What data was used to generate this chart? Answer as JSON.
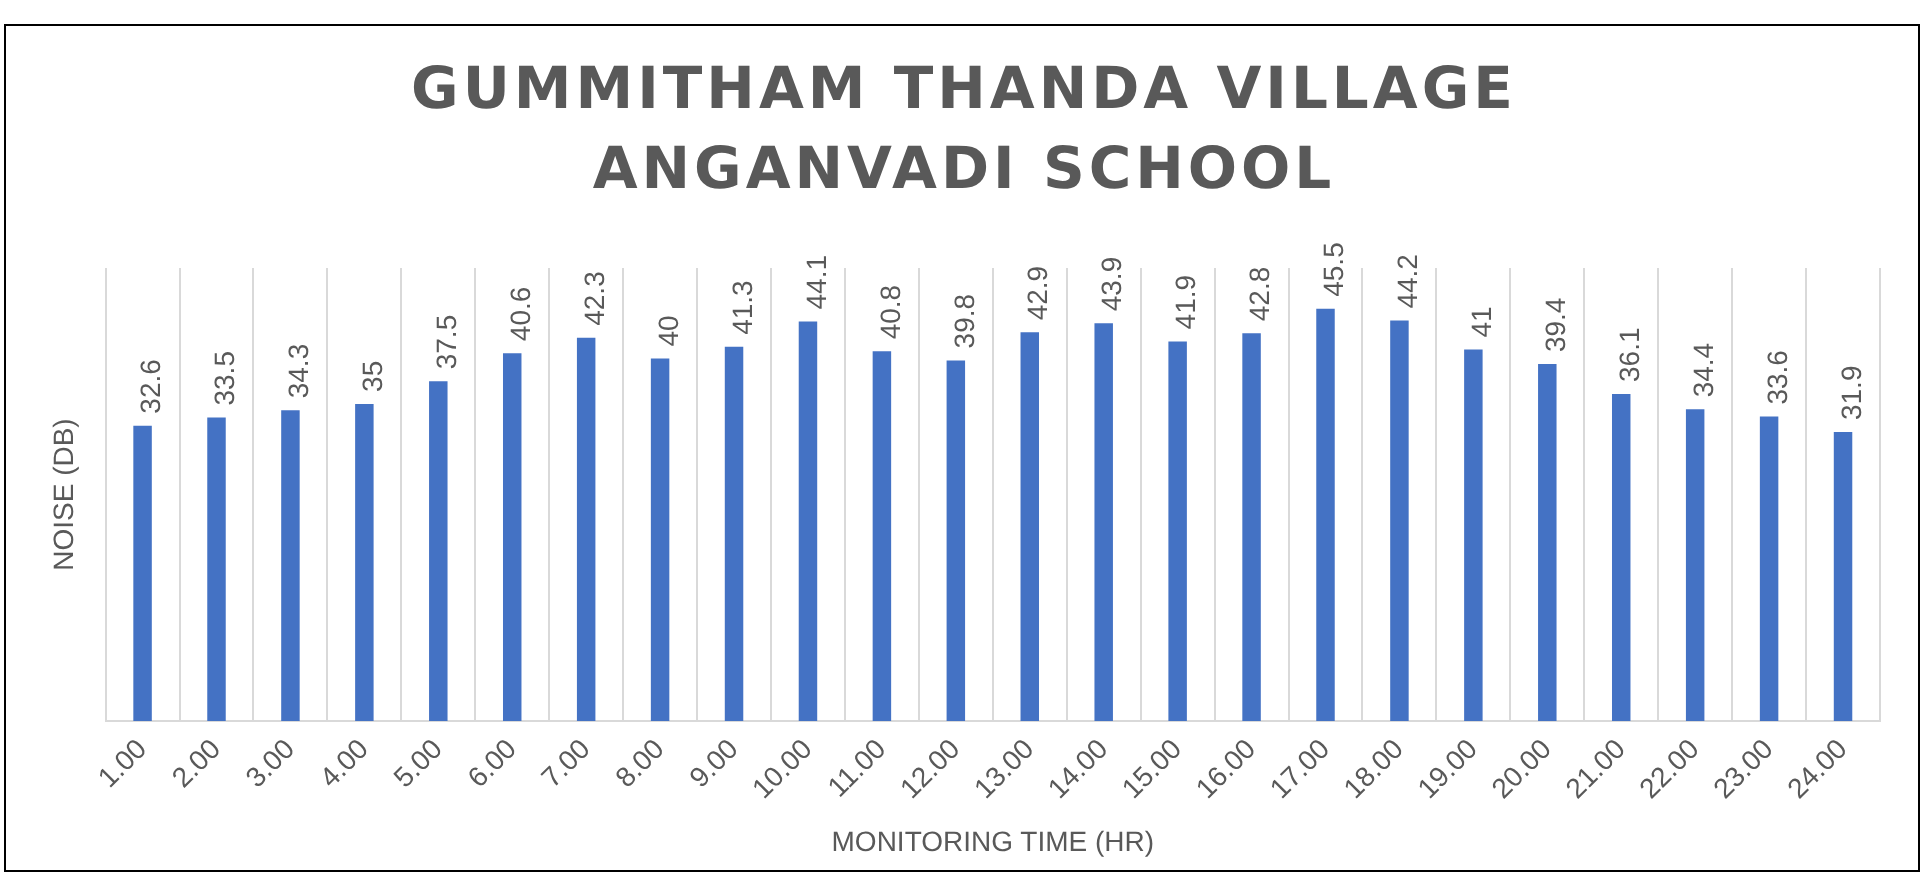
{
  "chart_data": {
    "type": "bar",
    "title": "GUMMITHAM THANDA VILLAGE ANGANVADI SCHOOL",
    "xlabel": "MONITORING TIME (HR)",
    "ylabel": "NOISE (DB)",
    "categories": [
      "1.00",
      "2.00",
      "3.00",
      "4.00",
      "5.00",
      "6.00",
      "7.00",
      "8.00",
      "9.00",
      "10.00",
      "11.00",
      "12.00",
      "13.00",
      "14.00",
      "15.00",
      "16.00",
      "17.00",
      "18.00",
      "19.00",
      "20.00",
      "21.00",
      "22.00",
      "23.00",
      "24.00"
    ],
    "values": [
      32.6,
      33.5,
      34.3,
      35,
      37.5,
      40.6,
      42.3,
      40,
      41.3,
      44.1,
      40.8,
      39.8,
      42.9,
      43.9,
      41.9,
      42.8,
      45.5,
      44.2,
      41,
      39.4,
      36.1,
      34.4,
      33.6,
      31.9
    ],
    "color": "#4472c4",
    "data_labels": true,
    "grid": "x",
    "legend": false,
    "tick_labels": "x"
  }
}
